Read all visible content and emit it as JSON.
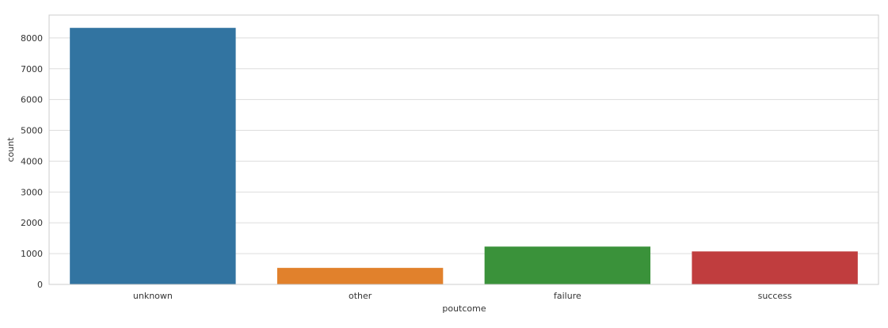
{
  "chart_data": {
    "type": "bar",
    "categories": [
      "unknown",
      "other",
      "failure",
      "success"
    ],
    "values": [
      8326,
      537,
      1228,
      1071
    ],
    "title": "",
    "xlabel": "poutcome",
    "ylabel": "count",
    "ylim": [
      0,
      8742
    ],
    "yticks": [
      0,
      1000,
      2000,
      3000,
      4000,
      5000,
      6000,
      7000,
      8000
    ],
    "grid": true,
    "colors": [
      "#3274a1",
      "#e1812c",
      "#3a923a",
      "#c03d3e"
    ]
  }
}
